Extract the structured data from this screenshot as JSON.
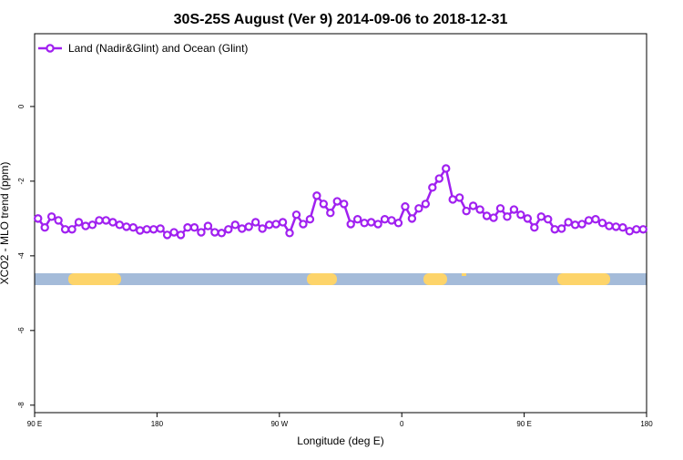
{
  "chart_data": {
    "type": "line",
    "title": "30S-25S August (Ver 9)   2014-09-06 to 2018-12-31",
    "xlabel": "Longitude (deg E)",
    "ylabel": "XCO2 - MLO trend (ppm)",
    "legend": "top-left",
    "xlim": [
      90,
      540
    ],
    "xticks": [
      {
        "value": 90,
        "label": "90 E"
      },
      180,
      {
        "value": 270,
        "label": "90 W"
      },
      {
        "value": 360,
        "label": "0"
      },
      {
        "value": 450,
        "label": "90 E"
      },
      {
        "value": 540,
        "label": "180"
      }
    ],
    "ylim": [
      -8.2,
      1.95
    ],
    "yticks": [
      0,
      -2,
      -4,
      -6,
      -8
    ],
    "series": [
      {
        "name": "Land (Nadir&Glint) and Ocean (Glint)",
        "color": "#a020f0",
        "x": [
          92.5,
          97.5,
          102.5,
          107.5,
          112.5,
          117.5,
          122.5,
          127.5,
          132.5,
          137.5,
          142.5,
          147.5,
          152.5,
          157.5,
          162.5,
          167.5,
          172.5,
          177.5,
          182.5,
          187.5,
          192.5,
          197.5,
          202.5,
          207.5,
          212.5,
          217.5,
          222.5,
          227.5,
          232.5,
          237.5,
          242.5,
          247.5,
          252.5,
          257.5,
          262.5,
          267.5,
          272.5,
          277.5,
          282.5,
          287.5,
          292.5,
          297.5,
          302.5,
          307.5,
          312.5,
          317.5,
          322.5,
          327.5,
          332.5,
          337.5,
          342.5,
          347.5,
          352.5,
          357.5,
          362.5,
          367.5,
          372.5,
          377.5,
          382.5,
          387.5,
          392.5,
          397.5,
          402.5,
          407.5,
          412.5,
          417.5,
          422.5,
          427.5,
          432.5,
          437.5,
          442.5,
          447.5,
          452.5,
          457.5,
          462.5,
          467.5,
          472.5,
          477.5,
          482.5,
          487.5,
          492.5,
          497.5,
          502.5,
          507.5,
          512.5,
          517.5,
          522.5,
          527.5,
          532.5,
          537.5
        ],
        "values": [
          -3.0,
          -3.24,
          -2.95,
          -3.05,
          -3.29,
          -3.29,
          -3.1,
          -3.2,
          -3.17,
          -3.05,
          -3.05,
          -3.1,
          -3.17,
          -3.22,
          -3.24,
          -3.32,
          -3.29,
          -3.29,
          -3.27,
          -3.44,
          -3.37,
          -3.44,
          -3.24,
          -3.24,
          -3.37,
          -3.2,
          -3.37,
          -3.39,
          -3.29,
          -3.17,
          -3.27,
          -3.22,
          -3.1,
          -3.27,
          -3.17,
          -3.15,
          -3.1,
          -3.39,
          -2.9,
          -3.15,
          -3.02,
          -2.39,
          -2.61,
          -2.85,
          -2.54,
          -2.61,
          -3.15,
          -3.02,
          -3.12,
          -3.1,
          -3.15,
          -3.02,
          -3.05,
          -3.12,
          -2.68,
          -3.0,
          -2.73,
          -2.61,
          -2.17,
          -1.93,
          -1.66,
          -2.49,
          -2.44,
          -2.8,
          -2.66,
          -2.76,
          -2.93,
          -2.98,
          -2.73,
          -2.95,
          -2.76,
          -2.9,
          -3.0,
          -3.24,
          -2.95,
          -3.02,
          -3.29,
          -3.27,
          -3.1,
          -3.17,
          -3.15,
          -3.05,
          -3.02,
          -3.12,
          -3.2,
          -3.22,
          -3.24,
          -3.34,
          -3.29,
          -3.29
        ]
      }
    ]
  }
}
